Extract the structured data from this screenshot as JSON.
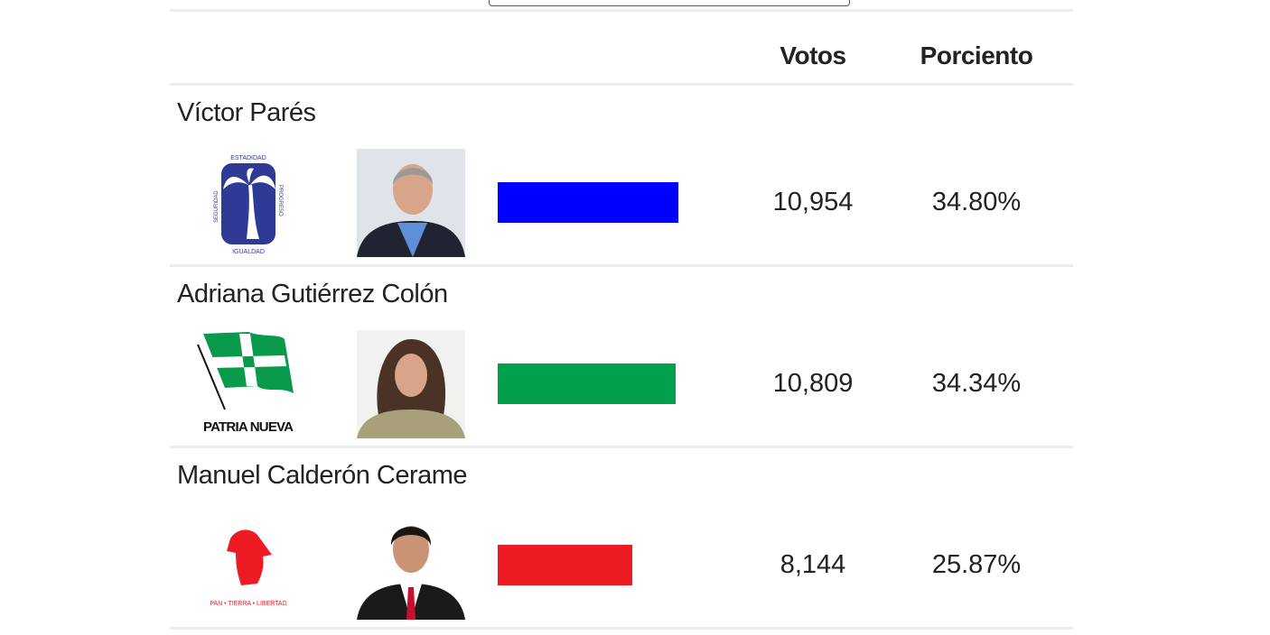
{
  "table": {
    "headers": {
      "votes": "Votos",
      "percent": "Porciento"
    },
    "max_votes": 10954,
    "rows": [
      {
        "name": "Víctor Parés",
        "votes": "10,954",
        "votes_value": 10954,
        "percent": "34.80%",
        "color": "#0000ff",
        "party_logo": "palm-tree-logo",
        "logo_text": [
          "ESTADIDAD",
          "SEGURIDAD",
          "PROGRESO",
          "IGUALDAD"
        ]
      },
      {
        "name": "Adriana Gutiérrez Colón",
        "votes": "10,809",
        "votes_value": 10809,
        "percent": "34.34%",
        "color": "#00a04c",
        "party_logo": "flag-logo",
        "logo_text": [
          "PATRIA NUEVA"
        ]
      },
      {
        "name": "Manuel Calderón Cerame",
        "votes": "8,144",
        "votes_value": 8144,
        "percent": "25.87%",
        "color": "#ed1c24",
        "party_logo": "jibaro-logo",
        "logo_text": [
          "PAN • TIERRA • LIBERTAD"
        ]
      }
    ]
  }
}
